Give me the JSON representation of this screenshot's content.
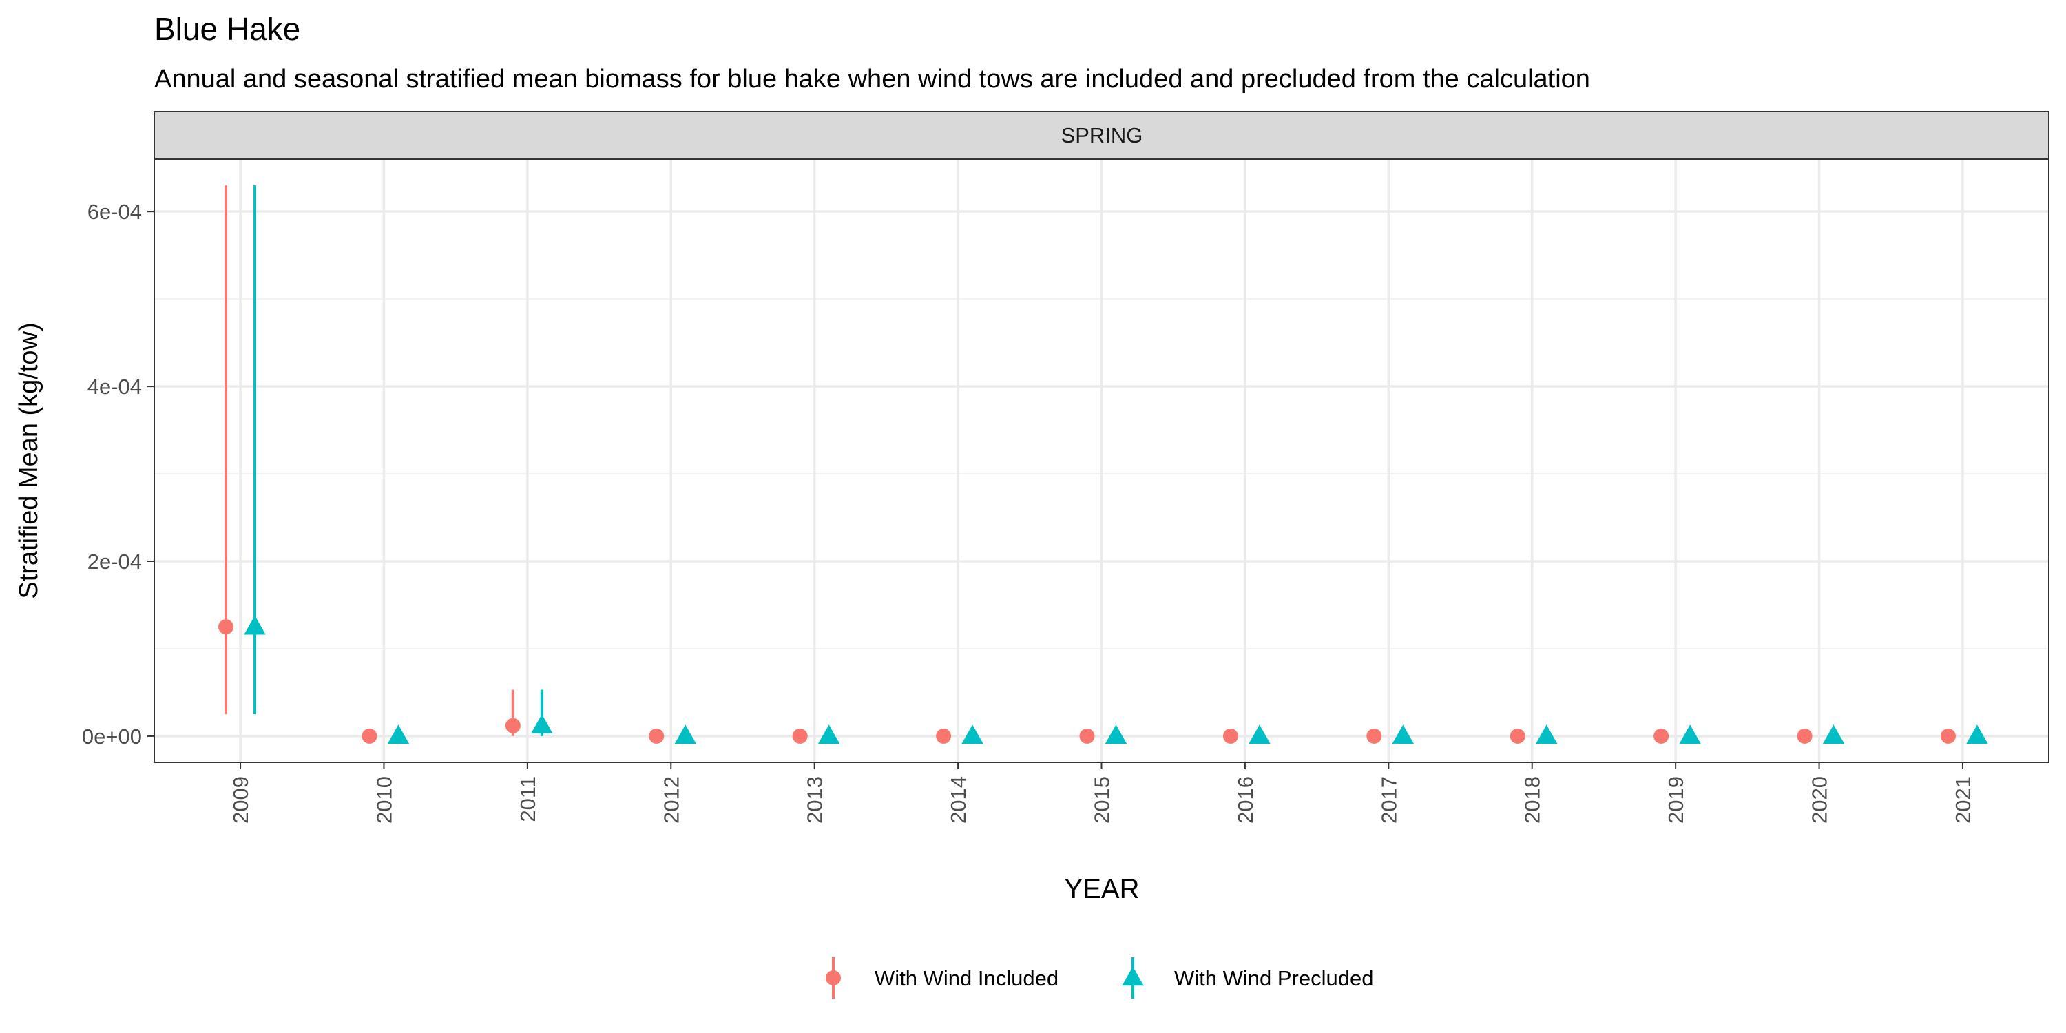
{
  "chart_data": {
    "type": "scatter",
    "title": "Blue Hake",
    "subtitle": "Annual and seasonal stratified mean biomass for blue hake when wind tows are included and precluded from the calculation",
    "facet_label": "SPRING",
    "xlabel": "YEAR",
    "ylabel": "Stratified Mean (kg/tow)",
    "categories": [
      "2009",
      "2010",
      "2011",
      "2012",
      "2013",
      "2014",
      "2015",
      "2016",
      "2017",
      "2018",
      "2019",
      "2020",
      "2021"
    ],
    "ylim": [
      -3e-05,
      0.00066
    ],
    "y_ticks": [
      0,
      0.0002,
      0.0004,
      0.0006
    ],
    "y_tick_labels": [
      "0e+00",
      "2e-04",
      "4e-04",
      "6e-04"
    ],
    "grid": true,
    "legend_position": "bottom",
    "series": [
      {
        "name": "With Wind Included",
        "color": "#F8766D",
        "marker": "circle",
        "values": [
          0.000125,
          0,
          1.2e-05,
          0,
          0,
          0,
          0,
          0,
          0,
          0,
          0,
          0,
          0
        ],
        "lower": [
          2.5e-05,
          0,
          0,
          0,
          0,
          0,
          0,
          0,
          0,
          0,
          0,
          0,
          0
        ],
        "upper": [
          0.00063,
          0,
          5.3e-05,
          0,
          0,
          0,
          0,
          0,
          0,
          0,
          0,
          0,
          0
        ]
      },
      {
        "name": "With Wind Precluded",
        "color": "#00BFC4",
        "marker": "triangle",
        "values": [
          0.000125,
          0,
          1.2e-05,
          0,
          0,
          0,
          0,
          0,
          0,
          0,
          0,
          0,
          0
        ],
        "lower": [
          2.5e-05,
          0,
          0,
          0,
          0,
          0,
          0,
          0,
          0,
          0,
          0,
          0,
          0
        ],
        "upper": [
          0.00063,
          0,
          5.3e-05,
          0,
          0,
          0,
          0,
          0,
          0,
          0,
          0,
          0,
          0
        ]
      }
    ]
  }
}
